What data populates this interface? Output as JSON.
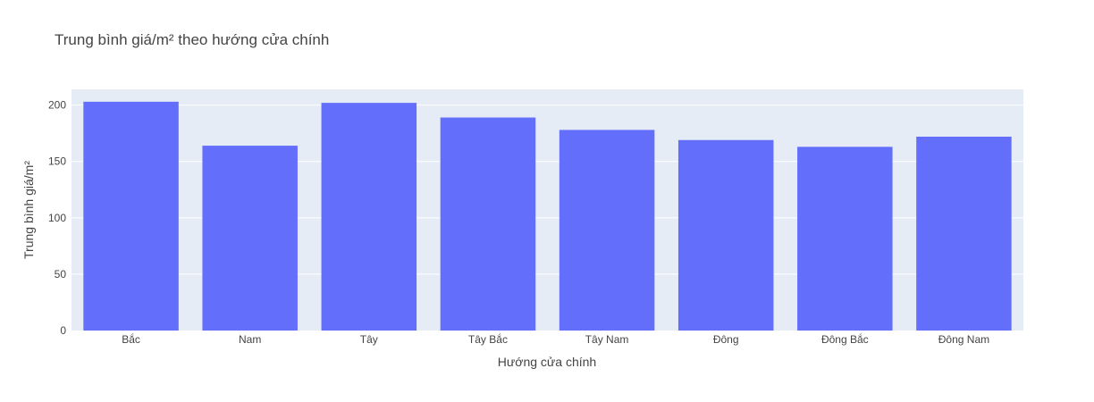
{
  "chart_data": {
    "type": "bar",
    "title": "Trung bình giá/m² theo hướng cửa chính",
    "xlabel": "Hướng cửa chính",
    "ylabel": "Trung bình giá/m²",
    "categories": [
      "Bắc",
      "Nam",
      "Tây",
      "Tây Bắc",
      "Tây Nam",
      "Đông",
      "Đông Bắc",
      "Đông Nam"
    ],
    "values": [
      203,
      164,
      202,
      189,
      178,
      169,
      163,
      172
    ],
    "ylim": [
      0,
      214
    ],
    "yticks": [
      0,
      50,
      100,
      150,
      200
    ],
    "grid": true,
    "colors": {
      "bar": "#636efa",
      "plot_bg": "#e5ecf6",
      "grid": "#ffffff",
      "text": "#444444"
    }
  }
}
